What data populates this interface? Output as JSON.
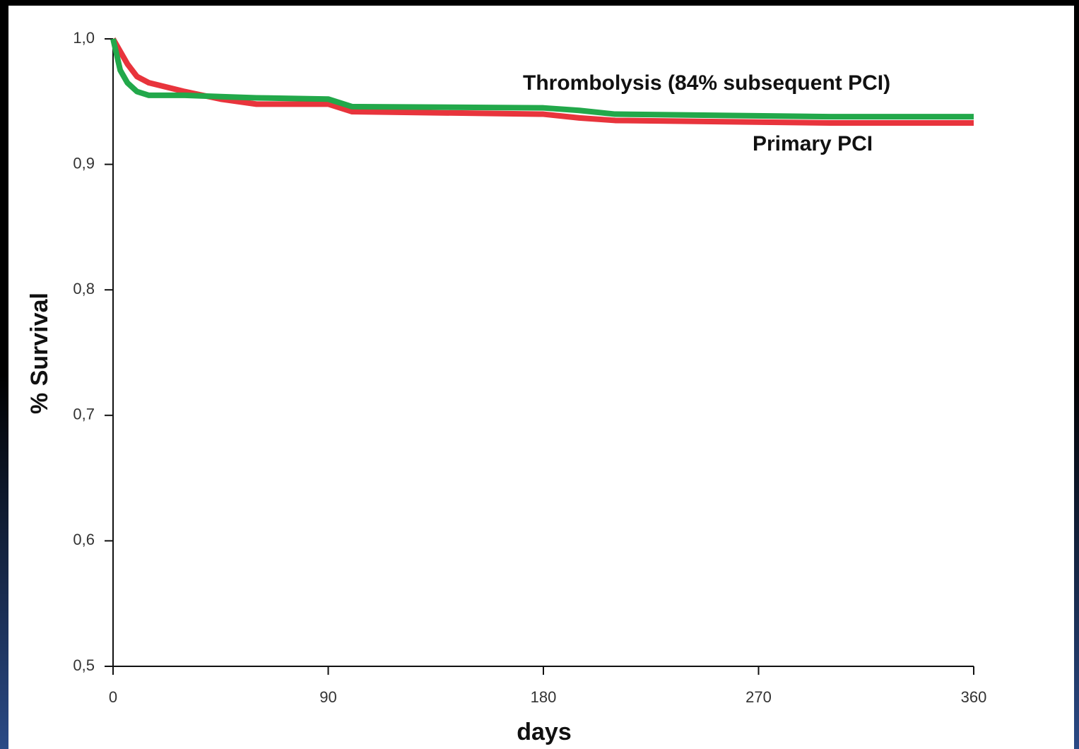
{
  "chart_data": {
    "type": "line",
    "x_label": "days",
    "y_label": "% Survival",
    "annotations": [
      "Thrombolysis (84% subsequent PCI)",
      "Primary PCI"
    ],
    "x": [
      0,
      3,
      6,
      10,
      15,
      30,
      45,
      60,
      90,
      100,
      180,
      195,
      210,
      300,
      360
    ],
    "series": [
      {
        "name": "Primary PCI",
        "color": "#e8343c",
        "values": [
          1.0,
          0.99,
          0.98,
          0.97,
          0.965,
          0.958,
          0.952,
          0.948,
          0.948,
          0.942,
          0.94,
          0.937,
          0.935,
          0.933,
          0.933
        ]
      },
      {
        "name": "Thrombolysis (84% subsequent PCI)",
        "color": "#22a84a",
        "values": [
          1.0,
          0.975,
          0.965,
          0.958,
          0.955,
          0.955,
          0.954,
          0.953,
          0.952,
          0.946,
          0.945,
          0.943,
          0.94,
          0.938,
          0.938
        ]
      }
    ],
    "xlim": [
      0,
      360
    ],
    "xticks": [
      0,
      90,
      180,
      270,
      360
    ],
    "ylim": [
      0.5,
      1.0
    ],
    "yticks": [
      {
        "value": 0.5,
        "label": "0,5"
      },
      {
        "value": 0.6,
        "label": "0,6"
      },
      {
        "value": 0.7,
        "label": "0,7"
      },
      {
        "value": 0.8,
        "label": "0,8"
      },
      {
        "value": 0.9,
        "label": "0,9"
      },
      {
        "value": 1.0,
        "label": "1,0"
      }
    ],
    "grid": false
  }
}
